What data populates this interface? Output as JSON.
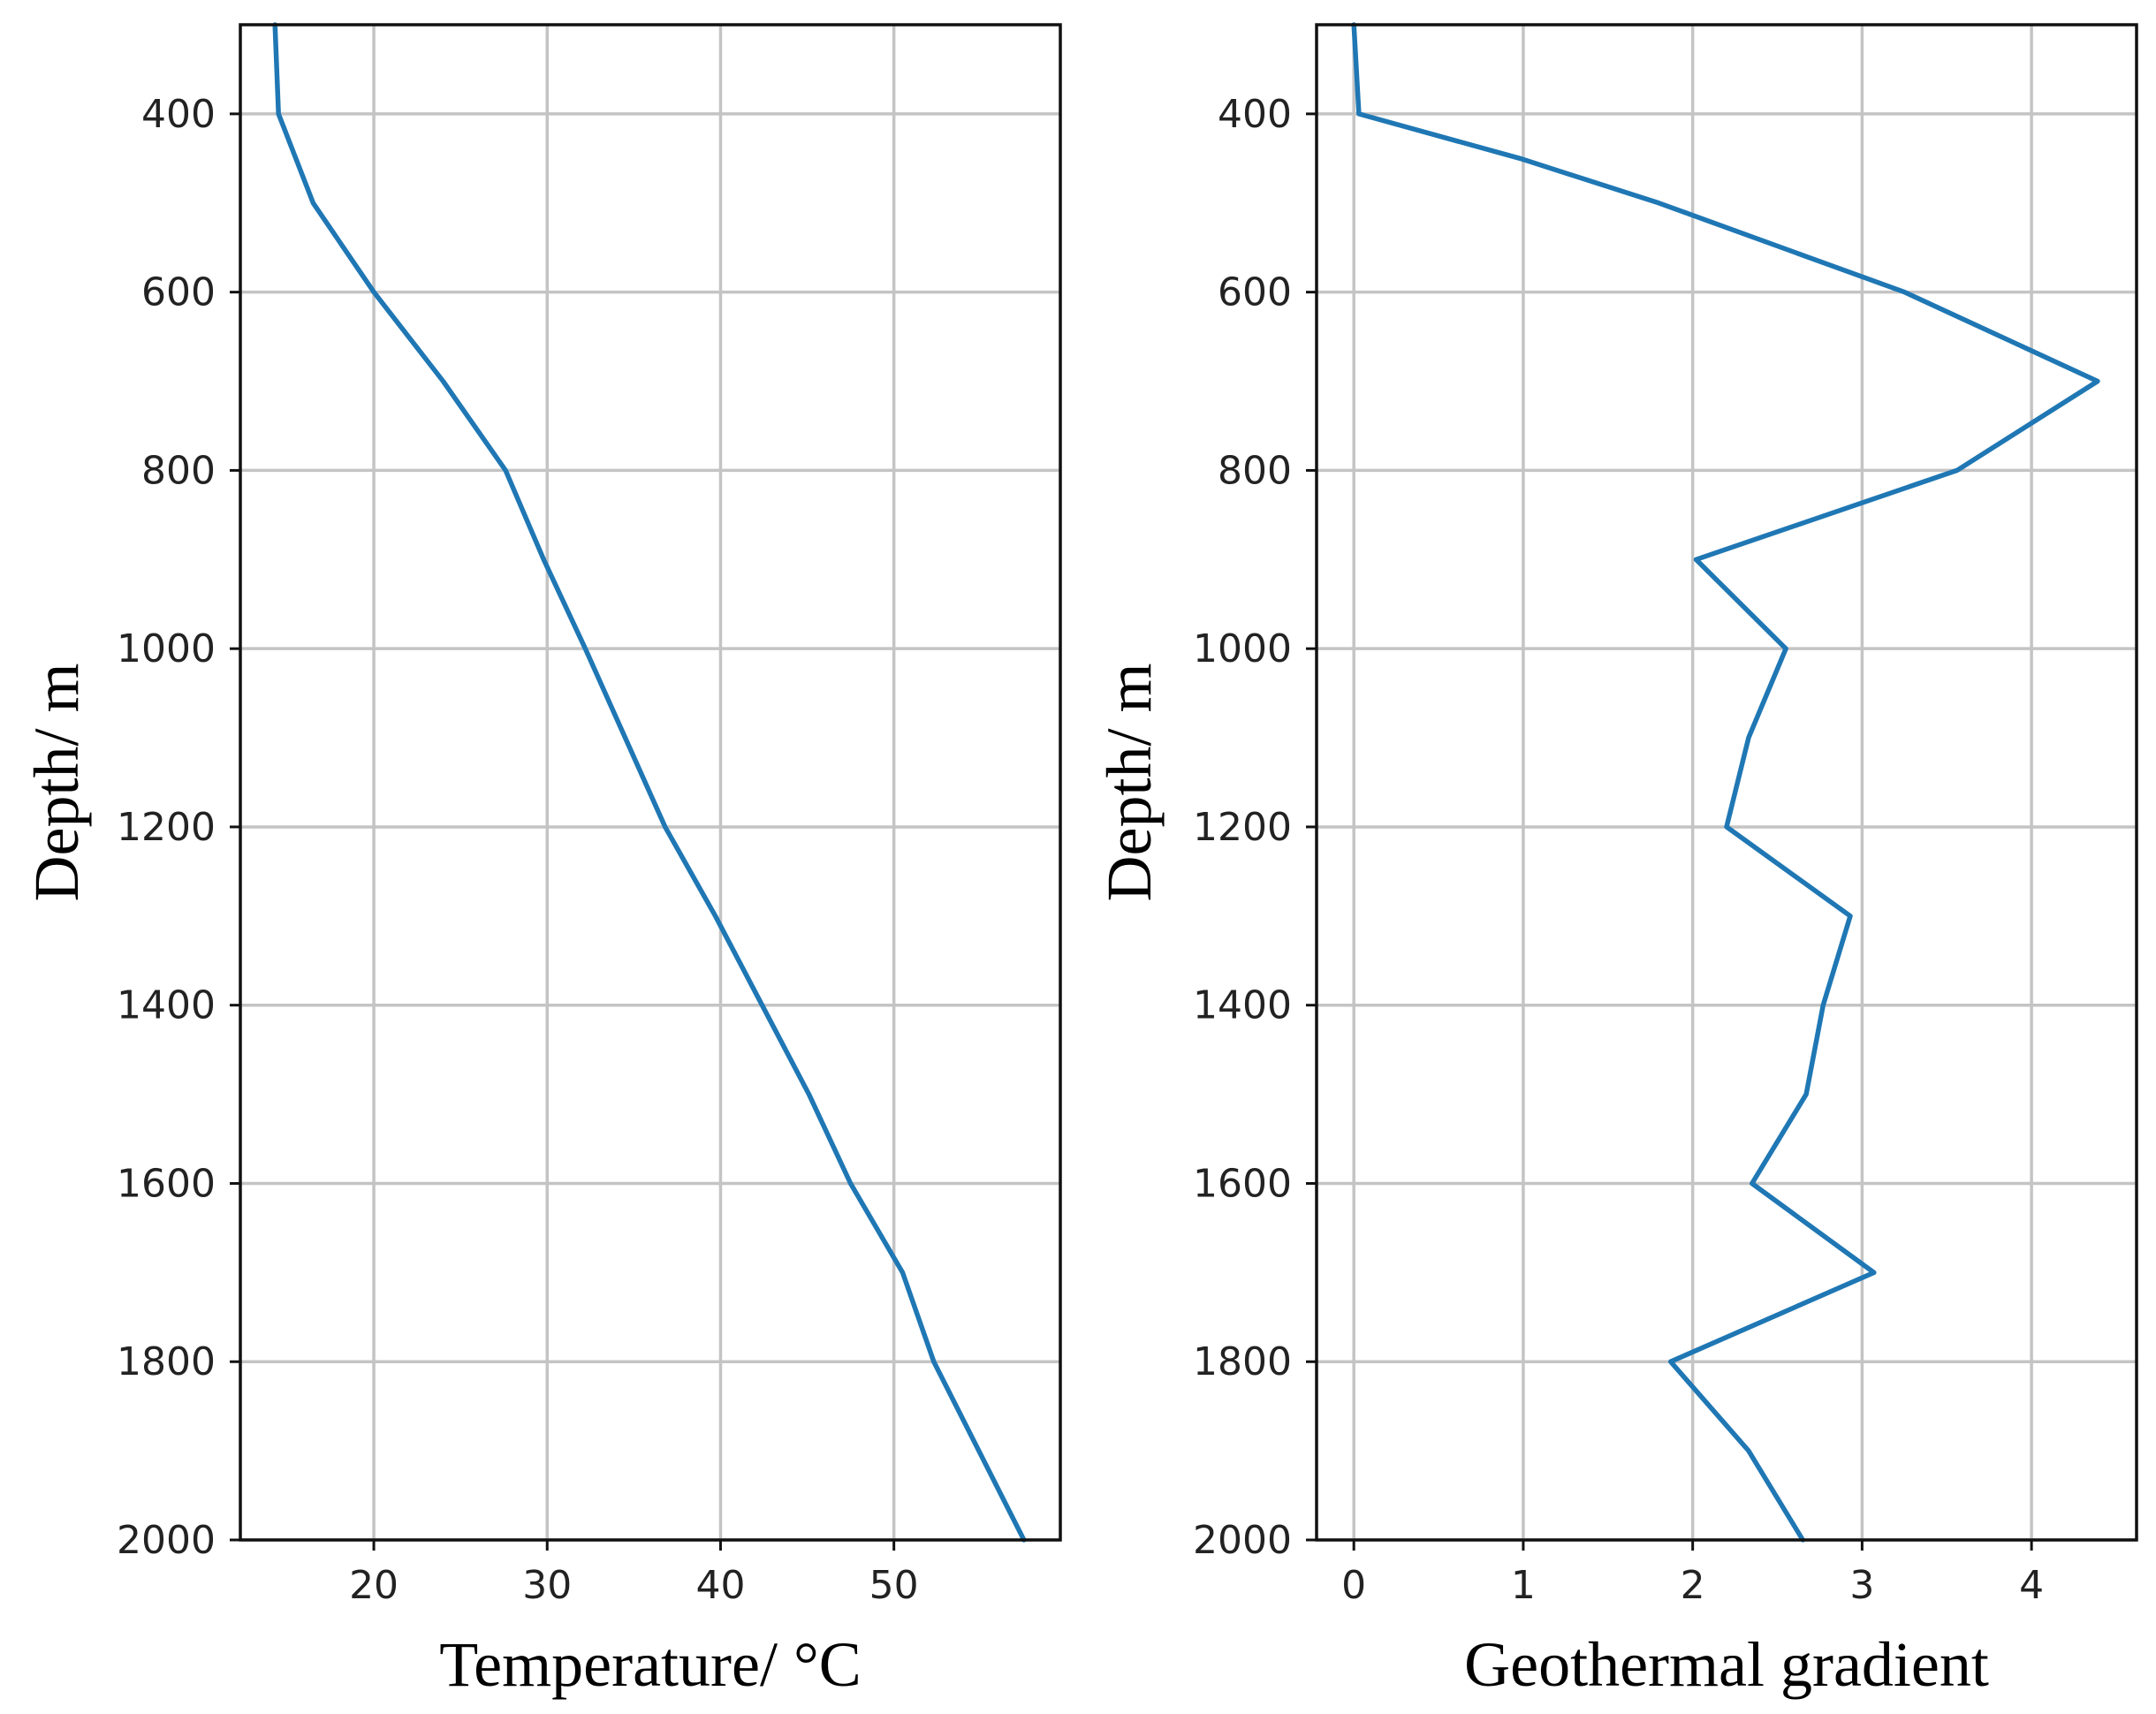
{
  "colors": {
    "series": "#1f77b4"
  },
  "chart_data": [
    {
      "type": "line",
      "orientation": "depth-vs-value",
      "xlabel": "Temperature/ °C",
      "ylabel": "Depth/ m",
      "xlim": [
        12.3,
        59.6
      ],
      "ylim": [
        2000,
        300
      ],
      "y_inverted": true,
      "grid": true,
      "xticks": [
        "20",
        "30",
        "40",
        "50"
      ],
      "yticks": [
        "400",
        "600",
        "800",
        "1000",
        "1200",
        "1400",
        "1600",
        "1800",
        "2000"
      ],
      "series": [
        {
          "points": [
            {
              "x": 14.3,
              "y": 300
            },
            {
              "x": 14.5,
              "y": 400
            },
            {
              "x": 16.5,
              "y": 500
            },
            {
              "x": 20.0,
              "y": 600
            },
            {
              "x": 24.0,
              "y": 700
            },
            {
              "x": 27.6,
              "y": 800
            },
            {
              "x": 29.8,
              "y": 900
            },
            {
              "x": 32.2,
              "y": 1000
            },
            {
              "x": 34.5,
              "y": 1100
            },
            {
              "x": 36.8,
              "y": 1200
            },
            {
              "x": 39.7,
              "y": 1300
            },
            {
              "x": 42.4,
              "y": 1400
            },
            {
              "x": 45.1,
              "y": 1500
            },
            {
              "x": 47.5,
              "y": 1600
            },
            {
              "x": 50.5,
              "y": 1700
            },
            {
              "x": 52.3,
              "y": 1800
            },
            {
              "x": 54.9,
              "y": 1900
            },
            {
              "x": 57.5,
              "y": 2000
            }
          ]
        }
      ]
    },
    {
      "type": "line",
      "orientation": "depth-vs-value",
      "xlabel": "Geothermal gradient",
      "ylabel": "Depth/ m",
      "xlim": [
        -0.22,
        4.62
      ],
      "ylim": [
        2000,
        300
      ],
      "y_inverted": true,
      "grid": true,
      "xticks": [
        "0",
        "1",
        "2",
        "3",
        "4"
      ],
      "yticks": [
        "400",
        "600",
        "800",
        "1000",
        "1200",
        "1400",
        "1600",
        "1800",
        "2000"
      ],
      "series": [
        {
          "points": [
            {
              "x": 0.0,
              "y": 300
            },
            {
              "x": 0.03,
              "y": 400
            },
            {
              "x": 0.98,
              "y": 450
            },
            {
              "x": 1.8,
              "y": 500
            },
            {
              "x": 3.25,
              "y": 600
            },
            {
              "x": 4.39,
              "y": 700
            },
            {
              "x": 3.56,
              "y": 800
            },
            {
              "x": 2.02,
              "y": 900
            },
            {
              "x": 2.55,
              "y": 1000
            },
            {
              "x": 2.33,
              "y": 1100
            },
            {
              "x": 2.2,
              "y": 1200
            },
            {
              "x": 2.93,
              "y": 1300
            },
            {
              "x": 2.77,
              "y": 1400
            },
            {
              "x": 2.67,
              "y": 1500
            },
            {
              "x": 2.35,
              "y": 1600
            },
            {
              "x": 3.07,
              "y": 1700
            },
            {
              "x": 1.87,
              "y": 1800
            },
            {
              "x": 2.33,
              "y": 1900
            },
            {
              "x": 2.65,
              "y": 2000
            }
          ]
        }
      ]
    }
  ]
}
